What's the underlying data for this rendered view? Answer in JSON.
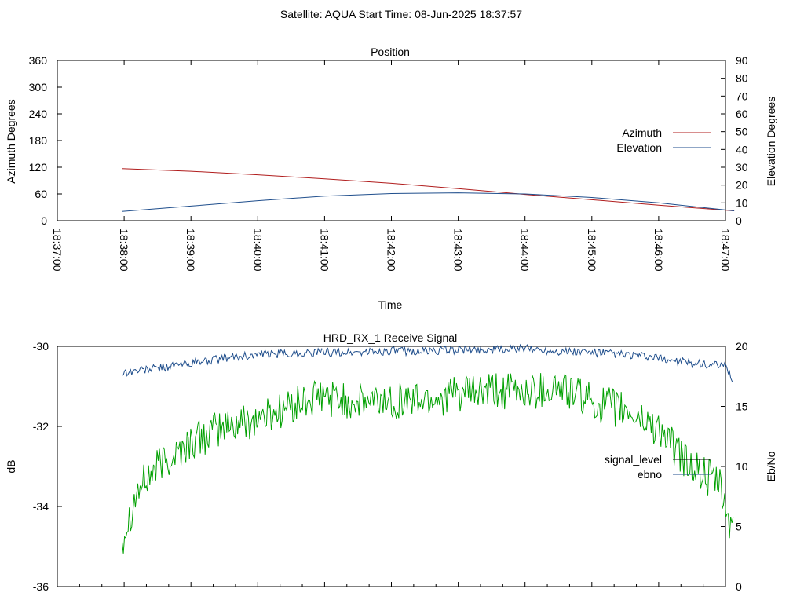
{
  "suptitle": "Satellite: AQUA    Start Time: 08-Jun-2025 18:37:57",
  "colors": {
    "azimuth": "#b01c1c",
    "elevation": "#1f4e8c",
    "signal_level": "#000000",
    "ebno": "#1f4e8c",
    "green": "#00a000"
  },
  "chart_data": [
    {
      "type": "line",
      "title": "Position",
      "xlabel": "Time",
      "ylabel": "Azimuth Degrees",
      "y2label": "Elevation Degrees",
      "ylim": [
        0,
        360
      ],
      "y2lim": [
        0,
        90
      ],
      "yticks": [
        "0",
        "60",
        "120",
        "180",
        "240",
        "300",
        "360"
      ],
      "y2ticks": [
        "0",
        "10",
        "20",
        "30",
        "40",
        "50",
        "60",
        "70",
        "80",
        "90"
      ],
      "xticks": [
        "18:37:00",
        "18:38:00",
        "18:39:00",
        "18:40:00",
        "18:41:00",
        "18:42:00",
        "18:43:00",
        "18:44:00",
        "18:45:00",
        "18:46:00",
        "18:47:00"
      ],
      "x_unit": "minutes after 18:37:00",
      "xlim": [
        0,
        10
      ],
      "legend_position": "right",
      "series": [
        {
          "name": "Azimuth",
          "axis": "left",
          "x": [
            0.97,
            2,
            3,
            4,
            5,
            6,
            7,
            8,
            9,
            10.13
          ],
          "values": [
            117,
            111,
            103,
            94,
            84,
            72,
            59,
            47,
            35,
            22
          ]
        },
        {
          "name": "Elevation",
          "axis": "right",
          "x": [
            0.97,
            2,
            3,
            4,
            5,
            6,
            7,
            8,
            9,
            10.13
          ],
          "values": [
            5.2,
            8.2,
            11.2,
            13.8,
            15.2,
            15.6,
            15.0,
            13.0,
            10.0,
            5.5
          ]
        }
      ]
    },
    {
      "type": "line",
      "title": "HRD_RX_1 Receive Signal",
      "ylabel": "dB",
      "y2label": "Eb/No",
      "ylim": [
        -36,
        -30
      ],
      "y2lim": [
        0,
        20
      ],
      "yticks": [
        "-36",
        "-34",
        "-32",
        "-30"
      ],
      "y2ticks": [
        "0",
        "5",
        "10",
        "15",
        "20"
      ],
      "xlim": [
        0,
        10
      ],
      "x_tick_count": 31,
      "legend_position": "right",
      "legend": [
        "signal_level",
        "ebno"
      ],
      "series": [
        {
          "name": "signal_level",
          "axis": "left",
          "x": [],
          "values": []
        },
        {
          "name": "ebno",
          "axis": "right",
          "x": [
            0.97,
            1.5,
            2,
            2.5,
            3,
            3.5,
            4,
            4.5,
            5,
            5.5,
            6,
            6.5,
            7,
            7.5,
            8,
            8.5,
            9,
            9.5,
            10,
            10.13
          ],
          "values": [
            17.8,
            18.2,
            18.6,
            19.0,
            19.3,
            19.4,
            19.5,
            19.5,
            19.6,
            19.6,
            19.7,
            19.7,
            19.8,
            19.6,
            19.5,
            19.3,
            19.0,
            18.6,
            18.3,
            17.0
          ]
        },
        {
          "name": "",
          "axis": "right",
          "x": [
            0.97,
            1.2,
            1.5,
            2,
            2.5,
            3,
            3.5,
            4,
            4.5,
            5,
            5.5,
            6,
            6.5,
            7,
            7.5,
            8,
            8.5,
            9,
            9.3,
            9.6,
            9.9,
            10.13
          ],
          "values": [
            4,
            8,
            10,
            12,
            13.3,
            14,
            15,
            15.8,
            15.3,
            15.5,
            15.6,
            16,
            16.2,
            16.2,
            16.6,
            15.4,
            14.6,
            13.2,
            11.0,
            9.5,
            8.5,
            4
          ]
        }
      ]
    }
  ]
}
